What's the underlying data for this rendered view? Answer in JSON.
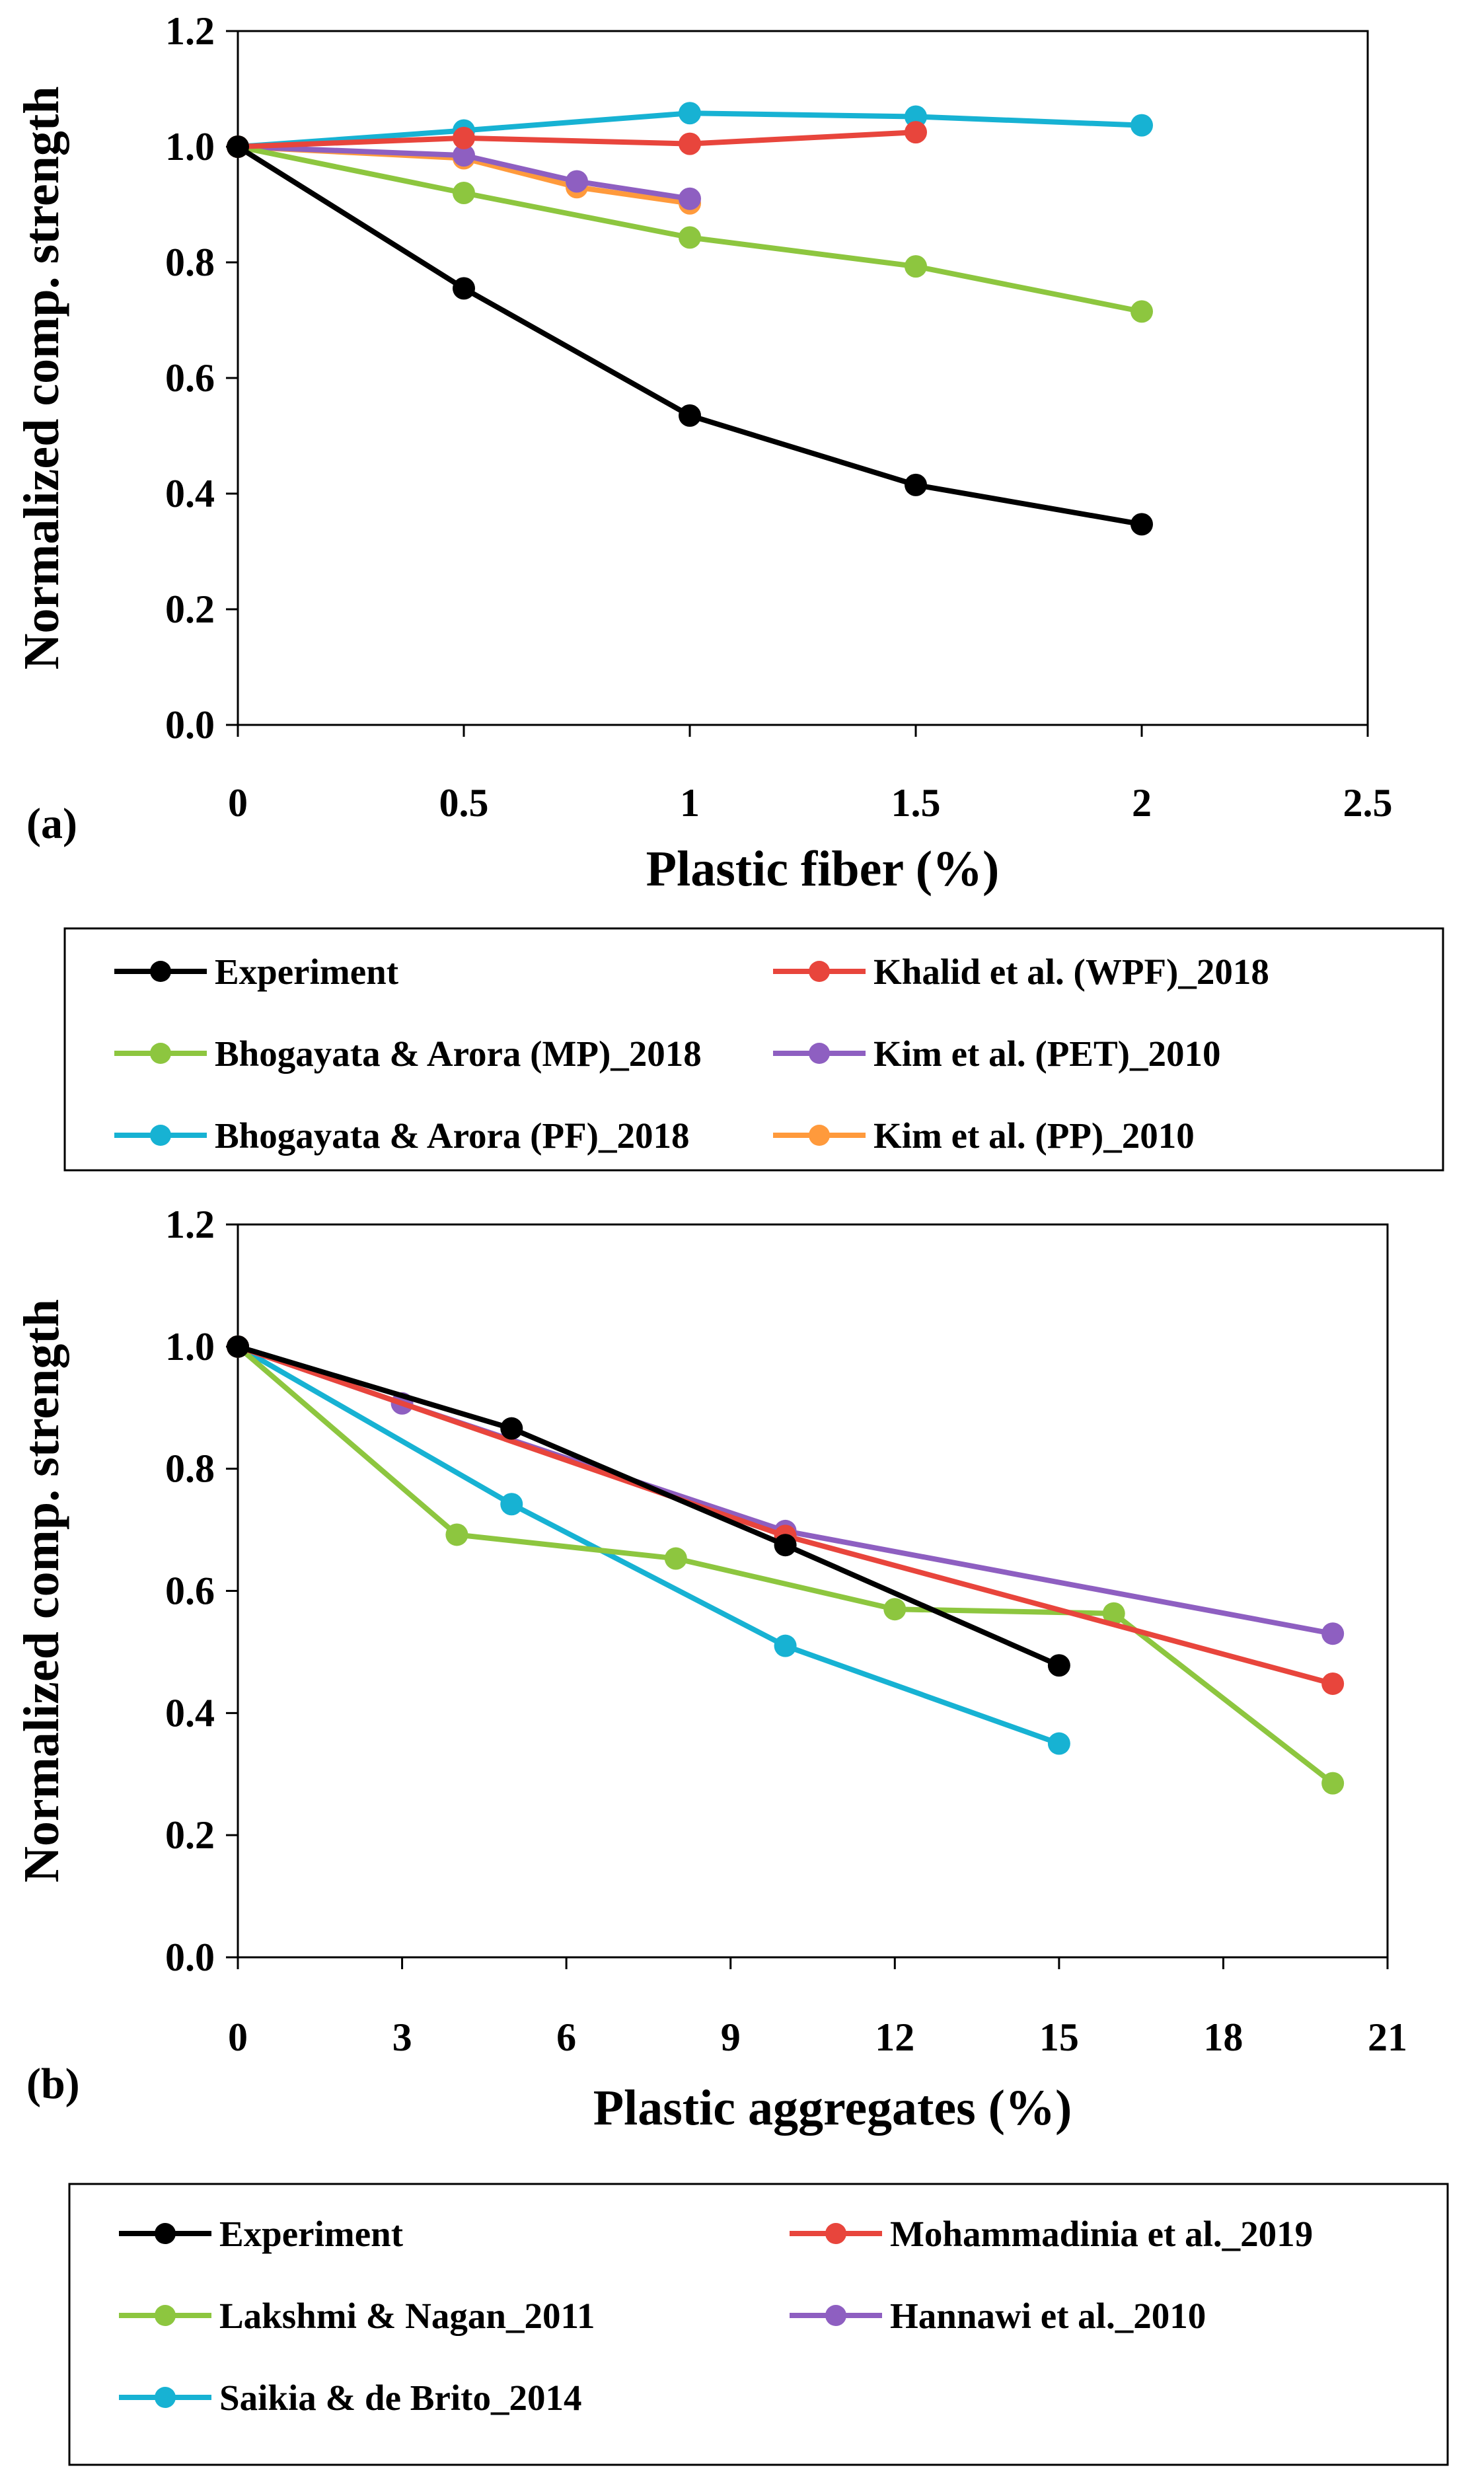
{
  "colors": {
    "experiment": "#000000",
    "red": "#E8453C",
    "green": "#8DC63F",
    "purple": "#8E5FC1",
    "cyan": "#17B2D3",
    "orange": "#FF9A3C"
  },
  "chart_data": [
    {
      "type": "line",
      "panel_label": "(a)",
      "xlabel": "Plastic fiber (%)",
      "ylabel": "Normalized comp. strength",
      "xlim": [
        0,
        2.5
      ],
      "ylim": [
        0,
        1.2
      ],
      "x_ticks": [
        "0",
        "0.5",
        "1",
        "1.5",
        "2",
        "2.5"
      ],
      "y_ticks": [
        "0.0",
        "0.2",
        "0.4",
        "0.6",
        "0.8",
        "1.0",
        "1.2"
      ],
      "legend_position": "below",
      "series": [
        {
          "name": "Experiment",
          "color": "#000000",
          "x": [
            0,
            0.5,
            1,
            1.5,
            2
          ],
          "y": [
            1.0,
            0.755,
            0.535,
            0.415,
            0.347
          ]
        },
        {
          "name": "Khalid et al. (WPF)_2018",
          "color": "#E8453C",
          "x": [
            0,
            0.5,
            1,
            1.5
          ],
          "y": [
            1.0,
            1.015,
            1.005,
            1.025
          ]
        },
        {
          "name": "Bhogayata & Arora (MP)_2018",
          "color": "#8DC63F",
          "x": [
            0,
            0.5,
            1,
            1.5,
            2
          ],
          "y": [
            1.0,
            0.92,
            0.843,
            0.793,
            0.715
          ]
        },
        {
          "name": "Kim et al. (PET)_2010",
          "color": "#8E5FC1",
          "x": [
            0,
            0.5,
            0.75,
            1
          ],
          "y": [
            1.0,
            0.985,
            0.94,
            0.91
          ]
        },
        {
          "name": "Bhogayata & Arora (PF)_2018",
          "color": "#17B2D3",
          "x": [
            0,
            0.5,
            1,
            1.5,
            2
          ],
          "y": [
            1.0,
            1.028,
            1.058,
            1.052,
            1.037
          ]
        },
        {
          "name": "Kim et al. (PP)_2010",
          "color": "#FF9A3C",
          "x": [
            0,
            0.5,
            0.75,
            1
          ],
          "y": [
            1.0,
            0.98,
            0.93,
            0.902
          ]
        }
      ]
    },
    {
      "type": "line",
      "panel_label": "(b)",
      "xlabel": "Plastic aggregates (%)",
      "ylabel": "Normalized comp. strength",
      "xlim": [
        0,
        21
      ],
      "ylim": [
        0,
        1.2
      ],
      "x_ticks": [
        "0",
        "3",
        "6",
        "9",
        "12",
        "15",
        "18",
        "21"
      ],
      "y_ticks": [
        "0.0",
        "0.2",
        "0.4",
        "0.6",
        "0.8",
        "1.0",
        "1.2"
      ],
      "legend_position": "below",
      "series": [
        {
          "name": "Experiment",
          "color": "#000000",
          "x": [
            0,
            5,
            10,
            15
          ],
          "y": [
            1.0,
            0.866,
            0.675,
            0.478
          ]
        },
        {
          "name": "Mohammadinia et al._2019",
          "color": "#E8453C",
          "x": [
            0,
            10,
            20
          ],
          "y": [
            1.0,
            0.69,
            0.448
          ]
        },
        {
          "name": "Lakshmi & Nagan_2011",
          "color": "#8DC63F",
          "x": [
            0,
            4,
            8,
            12,
            16,
            20
          ],
          "y": [
            1.0,
            0.692,
            0.653,
            0.57,
            0.563,
            0.285
          ]
        },
        {
          "name": "Hannawi et al._2010",
          "color": "#8E5FC1",
          "x": [
            0,
            3,
            10,
            20
          ],
          "y": [
            1.0,
            0.907,
            0.698,
            0.53
          ]
        },
        {
          "name": "Saikia & de Brito_2014",
          "color": "#17B2D3",
          "x": [
            0,
            5,
            10,
            15
          ],
          "y": [
            1.0,
            0.742,
            0.51,
            0.35
          ]
        }
      ]
    }
  ]
}
